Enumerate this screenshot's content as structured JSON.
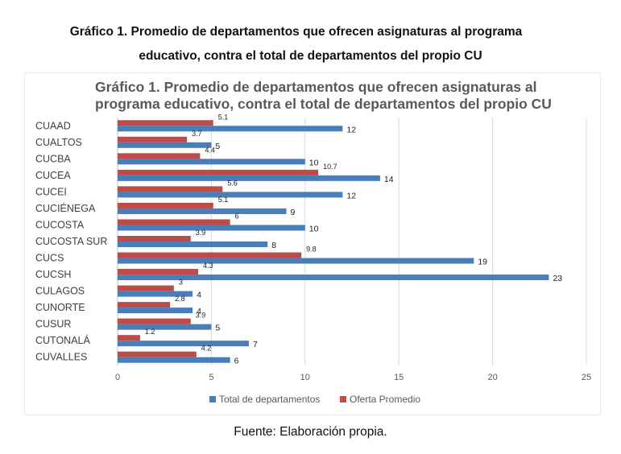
{
  "doc": {
    "title_line1": "Gráfico 1. Promedio de departamentos que ofrecen asignaturas al programa",
    "title_line2": "educativo, contra el total de departamentos del propio CU",
    "source": "Fuente: Elaboración propia."
  },
  "chart_data": {
    "type": "bar",
    "orientation": "horizontal",
    "title_line1": "Gráfico 1. Promedio de departamentos que ofrecen asignaturas al",
    "title_line2": "programa educativo, contra el total de departamentos del propio CU",
    "categories": [
      "CUAAD",
      "CUALTOS",
      "CUCBA",
      "CUCEA",
      "CUCEI",
      "CUCIÉNEGA",
      "CUCOSTA",
      "CUCOSTA SUR",
      "CUCS",
      "CUCSH",
      "CULAGOS",
      "CUNORTE",
      "CUSUR",
      "CUTONALÁ",
      "CUVALLES"
    ],
    "series": [
      {
        "name": "Total de departamentos",
        "color": "#4a7ebb",
        "values": [
          12,
          5,
          10,
          14,
          12,
          9,
          10,
          8,
          19,
          23,
          4,
          4,
          5,
          7,
          6
        ]
      },
      {
        "name": "Oferta Promedio",
        "color": "#be4b48",
        "values": [
          5.1,
          3.7,
          4.4,
          10.7,
          5.6,
          5.1,
          6,
          3.9,
          9.8,
          4.3,
          3,
          2.8,
          3.9,
          1.2,
          4.2
        ]
      }
    ],
    "xlim": [
      0,
      25
    ],
    "xticks": [
      "0",
      "5",
      "10",
      "15",
      "20",
      "25"
    ],
    "grid": true,
    "legend_position": "bottom"
  }
}
